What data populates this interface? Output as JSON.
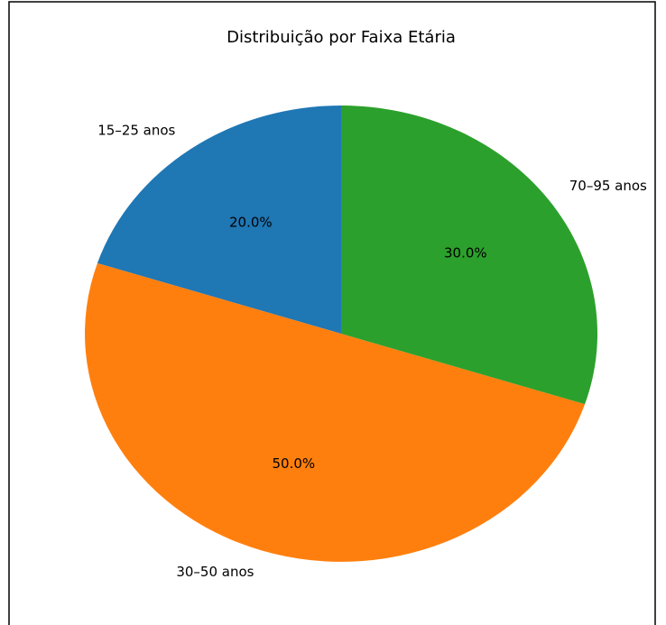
{
  "chart_data": {
    "type": "pie",
    "title": "Distribuição por Faixa Etária",
    "categories": [
      "15–25 anos",
      "30–50 anos",
      "70–95 anos"
    ],
    "values": [
      20,
      50,
      30
    ],
    "value_labels": [
      "20.0%",
      "50.0%",
      "30.0%"
    ],
    "colors": [
      "#1f77b4",
      "#ff7f0e",
      "#2ca02c"
    ]
  }
}
